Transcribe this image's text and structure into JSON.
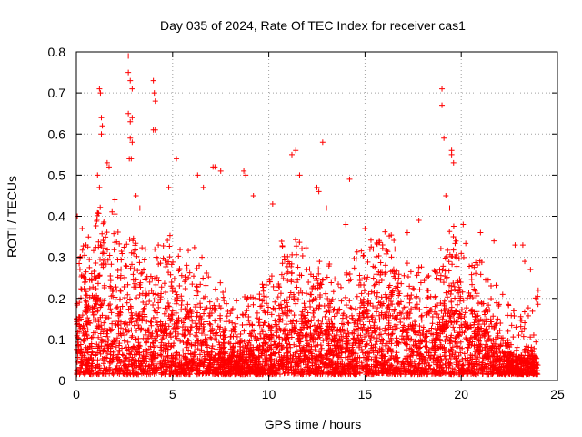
{
  "chart_data": {
    "type": "scatter",
    "title": "Day 035 of 2024, Rate Of TEC Index for receiver cas1",
    "xlabel": "GPS time / hours",
    "ylabel": "ROTI / TECUs",
    "xlim": [
      0,
      25
    ],
    "ylim": [
      0,
      0.8
    ],
    "x_ticks": [
      "0",
      "5",
      "10",
      "15",
      "20",
      "25"
    ],
    "y_ticks": [
      "0",
      "0.1",
      "0.2",
      "0.3",
      "0.4",
      "0.5",
      "0.6",
      "0.7",
      "0.8"
    ],
    "grid": true,
    "marker": "plus",
    "color": "#ff0000",
    "x_data_range": [
      0,
      24
    ],
    "series": [
      {
        "name": "",
        "points": [
          [
            0.05,
            0.4
          ],
          [
            0.3,
            0.37
          ],
          [
            0.5,
            0.33
          ],
          [
            1.1,
            0.5
          ],
          [
            1.2,
            0.47
          ],
          [
            1.2,
            0.71
          ],
          [
            1.25,
            0.7
          ],
          [
            1.3,
            0.64
          ],
          [
            1.35,
            0.62
          ],
          [
            1.3,
            0.6
          ],
          [
            1.6,
            0.53
          ],
          [
            1.7,
            0.52
          ],
          [
            2.0,
            0.44
          ],
          [
            2.7,
            0.79
          ],
          [
            2.7,
            0.75
          ],
          [
            2.8,
            0.73
          ],
          [
            2.9,
            0.71
          ],
          [
            2.7,
            0.65
          ],
          [
            2.8,
            0.63
          ],
          [
            2.9,
            0.64
          ],
          [
            2.8,
            0.59
          ],
          [
            2.9,
            0.58
          ],
          [
            2.75,
            0.54
          ],
          [
            2.85,
            0.54
          ],
          [
            3.1,
            0.45
          ],
          [
            3.3,
            0.42
          ],
          [
            4.0,
            0.73
          ],
          [
            4.05,
            0.7
          ],
          [
            4.1,
            0.68
          ],
          [
            4.0,
            0.61
          ],
          [
            4.1,
            0.61
          ],
          [
            5.2,
            0.54
          ],
          [
            4.8,
            0.47
          ],
          [
            6.3,
            0.5
          ],
          [
            6.6,
            0.47
          ],
          [
            7.1,
            0.52
          ],
          [
            7.2,
            0.52
          ],
          [
            7.5,
            0.51
          ],
          [
            8.7,
            0.51
          ],
          [
            8.8,
            0.5
          ],
          [
            9.2,
            0.45
          ],
          [
            10.2,
            0.43
          ],
          [
            11.2,
            0.55
          ],
          [
            11.4,
            0.56
          ],
          [
            11.6,
            0.5
          ],
          [
            12.8,
            0.58
          ],
          [
            12.5,
            0.47
          ],
          [
            12.6,
            0.46
          ],
          [
            13.0,
            0.42
          ],
          [
            14.2,
            0.49
          ],
          [
            14.0,
            0.38
          ],
          [
            15.0,
            0.37
          ],
          [
            17.2,
            0.36
          ],
          [
            17.8,
            0.39
          ],
          [
            19.0,
            0.71
          ],
          [
            19.0,
            0.67
          ],
          [
            19.1,
            0.59
          ],
          [
            19.5,
            0.56
          ],
          [
            19.5,
            0.55
          ],
          [
            19.6,
            0.53
          ],
          [
            19.2,
            0.45
          ],
          [
            19.4,
            0.42
          ],
          [
            20.1,
            0.38
          ],
          [
            21.0,
            0.36
          ],
          [
            21.7,
            0.34
          ],
          [
            22.8,
            0.33
          ],
          [
            23.2,
            0.33
          ],
          [
            23.3,
            0.29
          ],
          [
            23.6,
            0.27
          ],
          [
            24.0,
            0.22
          ]
        ]
      }
    ]
  }
}
